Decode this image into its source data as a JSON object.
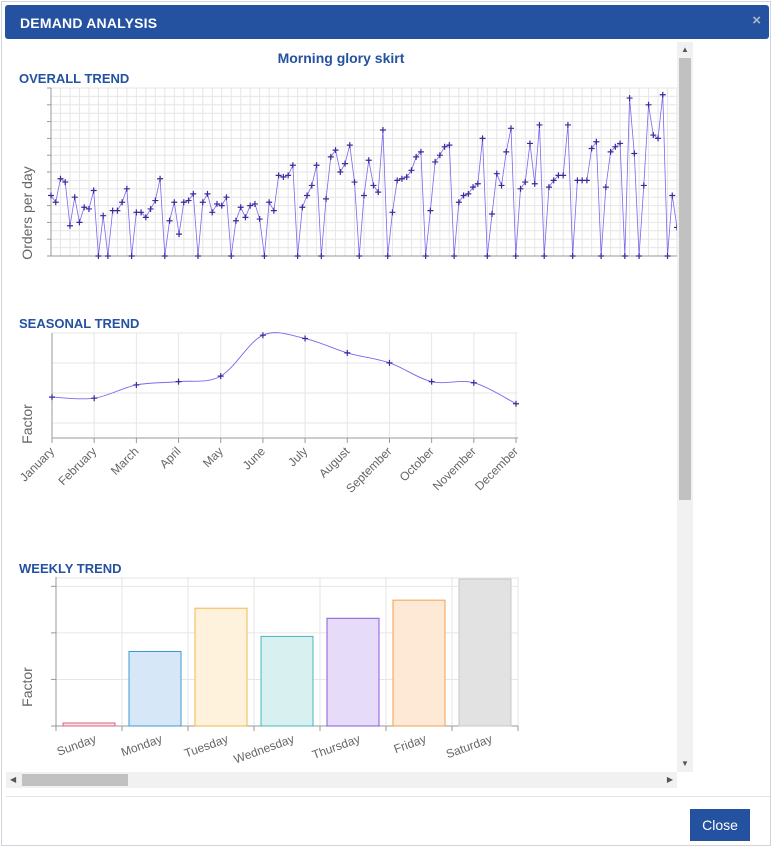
{
  "dialog": {
    "title": "DEMAND ANALYSIS",
    "close_icon": "×",
    "close_button_label": "Close",
    "product_title": "Morning glory skirt"
  },
  "scrollbars": {
    "up": "▲",
    "down": "▼",
    "left": "◀",
    "right": "▶"
  },
  "colors": {
    "accent": "#2452a0",
    "line": "#7b68ee",
    "marker": "#3a2a9a"
  },
  "chart_data": [
    {
      "type": "line",
      "title": "OVERALL TREND",
      "ylabel": "Orders per day",
      "xlabel": "",
      "ylim": [
        0,
        10
      ],
      "values": [
        3.6,
        3.2,
        4.6,
        4.4,
        1.8,
        3.5,
        2.0,
        2.9,
        2.8,
        3.9,
        0,
        2.4,
        0,
        2.7,
        2.7,
        3.2,
        4.0,
        0,
        2.6,
        2.6,
        2.3,
        2.8,
        3.3,
        4.6,
        0,
        2.1,
        3.2,
        1.3,
        3.2,
        3.3,
        3.7,
        0,
        3.2,
        3.7,
        2.6,
        3.1,
        3.0,
        3.5,
        0,
        2.1,
        2.9,
        2.3,
        3.0,
        3.1,
        2.2,
        0,
        3.2,
        2.7,
        4.8,
        4.7,
        4.8,
        5.4,
        0,
        2.9,
        3.6,
        4.2,
        5.4,
        0,
        3.4,
        5.9,
        6.3,
        5.0,
        5.5,
        6.6,
        4.4,
        0,
        3.6,
        5.7,
        4.2,
        3.8,
        7.5,
        0,
        2.6,
        4.5,
        4.6,
        4.7,
        5.1,
        5.9,
        6.2,
        0,
        2.7,
        5.6,
        6.0,
        6.5,
        6.6,
        0,
        3.2,
        3.6,
        3.7,
        4.1,
        4.3,
        7.0,
        0,
        2.5,
        4.9,
        4.2,
        6.2,
        7.6,
        0,
        4.0,
        4.4,
        6.7,
        4.3,
        7.8,
        0,
        4.1,
        4.5,
        4.8,
        4.8,
        7.8,
        0,
        4.5,
        4.5,
        4.5,
        6.4,
        6.8,
        0,
        4.1,
        6.2,
        6.5,
        6.7,
        0,
        9.4,
        6.1,
        0,
        4.2,
        9.0,
        7.2,
        7.0,
        9.6,
        0,
        3.6,
        1.7
      ],
      "series_name": "Orders per day"
    },
    {
      "type": "line",
      "title": "SEASONAL TREND",
      "ylabel": "Factor",
      "xlabel": "",
      "categories": [
        "January",
        "February",
        "March",
        "April",
        "May",
        "June",
        "July",
        "August",
        "September",
        "October",
        "November",
        "December"
      ],
      "values": [
        0.77,
        0.76,
        0.88,
        0.91,
        0.96,
        1.33,
        1.3,
        1.17,
        1.08,
        0.91,
        0.9,
        0.71
      ],
      "ylim": [
        0.4,
        1.35
      ]
    },
    {
      "type": "bar",
      "title": "WEEKLY TREND",
      "ylabel": "Factor",
      "xlabel": "",
      "categories": [
        "Sunday",
        "Monday",
        "Tuesday",
        "Wednesday",
        "Thursday",
        "Friday",
        "Saturday"
      ],
      "values": [
        0.03,
        0.74,
        1.17,
        0.89,
        1.07,
        1.25,
        1.46
      ],
      "ylim": [
        0,
        1.48
      ],
      "fills": [
        "#fde3e7",
        "#d6e8f8",
        "#fff2dc",
        "#d8f0f0",
        "#e6dcfa",
        "#fde9d6",
        "#e2e2e2"
      ],
      "strokes": [
        "#e0607a",
        "#3c9bd6",
        "#f0b94a",
        "#45b8b8",
        "#8a5ad8",
        "#f0a050",
        "#c8c8c8"
      ]
    }
  ]
}
